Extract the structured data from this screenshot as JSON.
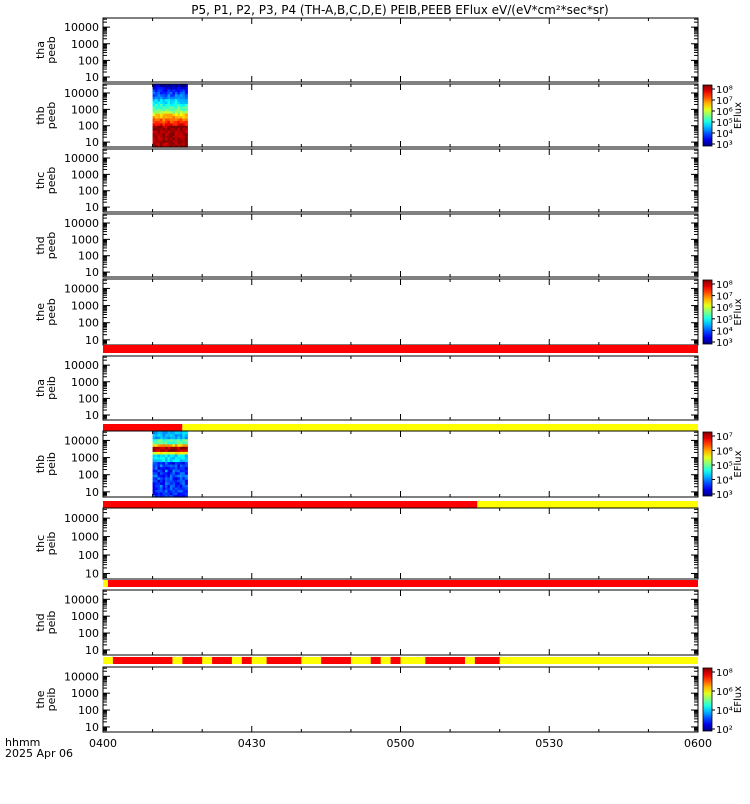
{
  "title": "P5, P1, P2, P3, P4 (TH-A,B,C,D,E) PEIB,PEEB EFlux eV/(eV*cm²*sec*sr)",
  "footer": {
    "time_label": "hhmm",
    "date_label": "2025 Apr 06"
  },
  "x_axis": {
    "ticks": [
      "0400",
      "0430",
      "0500",
      "0530",
      "0600"
    ],
    "range_minutes": [
      0,
      120
    ]
  },
  "y_axis": {
    "ticks": [
      "10",
      "100",
      "1000",
      "10000"
    ],
    "scale": "log"
  },
  "colorbar": {
    "label": "EFlux"
  },
  "colors": {
    "red": "#ff0000",
    "yellow": "#ffff00"
  },
  "chart_data": {
    "type": "heatmap",
    "x_range_utc": [
      "04:00",
      "06:00"
    ],
    "y_scale": "log",
    "panels": [
      {
        "label": "tha\npeeb",
        "data_time": null,
        "colorbar": null,
        "status_bar": null
      },
      {
        "label": "thb\npeeb",
        "data_time": [
          "04:10",
          "04:17"
        ],
        "colorbar": {
          "ticks": [
            "10³",
            "10⁴",
            "10⁵",
            "10⁶",
            "10⁷",
            "10⁸"
          ],
          "range_exp": [
            3,
            8
          ]
        },
        "status_bar": null
      },
      {
        "label": "thc\npeeb",
        "data_time": null,
        "colorbar": null,
        "status_bar": null
      },
      {
        "label": "thd\npeeb",
        "data_time": null,
        "colorbar": null,
        "status_bar": null
      },
      {
        "label": "the\npeeb",
        "data_time": null,
        "colorbar": {
          "ticks": [
            "10³",
            "10⁴",
            "10⁵",
            "10⁶",
            "10⁷",
            "10⁸"
          ],
          "range_exp": [
            3,
            8
          ]
        },
        "status_bar": [
          {
            "from_min": 0,
            "to_min": 120,
            "color": "red"
          }
        ]
      },
      {
        "label": "tha\npeib",
        "data_time": null,
        "colorbar": null,
        "status_bar": [
          {
            "from_min": 0,
            "to_min": 16,
            "color": "red"
          },
          {
            "from_min": 16,
            "to_min": 120,
            "color": "yellow"
          }
        ]
      },
      {
        "label": "thb\npeib",
        "data_time": [
          "04:10",
          "04:17"
        ],
        "colorbar": {
          "ticks": [
            "10³",
            "10⁴",
            "10⁵",
            "10⁶",
            "10⁷"
          ],
          "range_exp": [
            3,
            7
          ]
        },
        "status_bar": [
          {
            "from_min": 0,
            "to_min": 75.5,
            "color": "red"
          },
          {
            "from_min": 75.5,
            "to_min": 120,
            "color": "yellow"
          }
        ]
      },
      {
        "label": "thc\npeib",
        "data_time": null,
        "colorbar": null,
        "status_bar": [
          {
            "from_min": 0,
            "to_min": 1,
            "color": "yellow"
          },
          {
            "from_min": 1,
            "to_min": 120,
            "color": "red"
          }
        ]
      },
      {
        "label": "thd\npeib",
        "data_time": null,
        "colorbar": null,
        "status_bar": [
          {
            "from_min": 0,
            "to_min": 120,
            "color": "yellow"
          },
          {
            "from_min": 2,
            "to_min": 14,
            "color": "red"
          },
          {
            "from_min": 16,
            "to_min": 20,
            "color": "red"
          },
          {
            "from_min": 22,
            "to_min": 26,
            "color": "red"
          },
          {
            "from_min": 28,
            "to_min": 30,
            "color": "red"
          },
          {
            "from_min": 33,
            "to_min": 40,
            "color": "red"
          },
          {
            "from_min": 44,
            "to_min": 50,
            "color": "red"
          },
          {
            "from_min": 54,
            "to_min": 56,
            "color": "red"
          },
          {
            "from_min": 58,
            "to_min": 60,
            "color": "red"
          },
          {
            "from_min": 65,
            "to_min": 73,
            "color": "red"
          },
          {
            "from_min": 75,
            "to_min": 80,
            "color": "red"
          }
        ]
      },
      {
        "label": "the\npeib",
        "data_time": null,
        "colorbar": {
          "ticks": [
            "10²",
            "10⁴",
            "10⁶",
            "10⁸"
          ],
          "range_exp": [
            1.5,
            8.3
          ]
        },
        "status_bar": null
      }
    ]
  }
}
